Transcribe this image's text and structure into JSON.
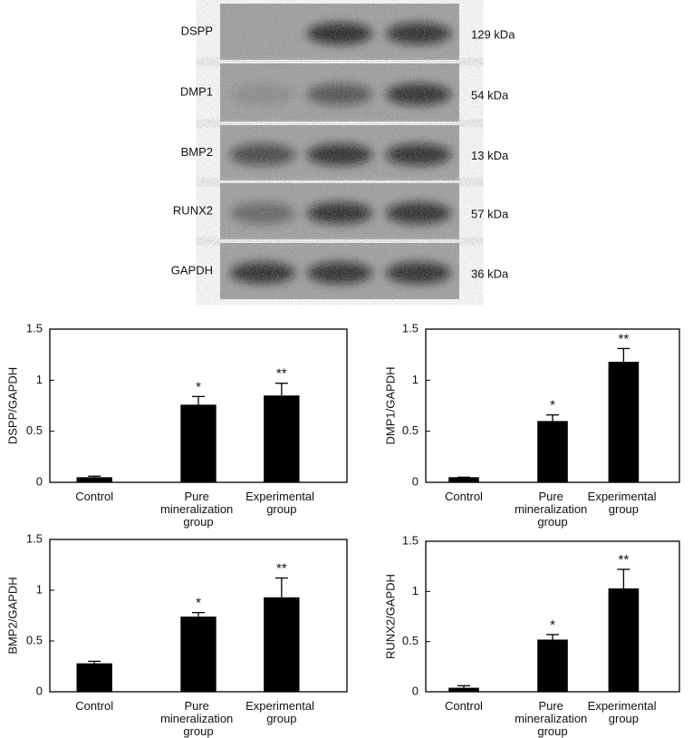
{
  "blot": {
    "rows": [
      {
        "label": "DSPP",
        "size": "129 kDa"
      },
      {
        "label": "DMP1",
        "size": "54 kDa"
      },
      {
        "label": "BMP2",
        "size": "13 kDa"
      },
      {
        "label": "RUNX2",
        "size": "57 kDa"
      },
      {
        "label": "GAPDH",
        "size": "36 kDa"
      }
    ]
  },
  "chart_data": [
    {
      "type": "bar",
      "ylabel": "DSPP/GAPDH",
      "categories": [
        "Control",
        "Pure mineralization group",
        "Experimental group"
      ],
      "values": [
        0.05,
        0.76,
        0.85
      ],
      "errors": [
        0.01,
        0.08,
        0.12
      ],
      "significance": [
        null,
        "*",
        "**"
      ],
      "color": "#000000",
      "ylim": [
        0,
        1.5
      ],
      "yticks": [
        0,
        0.5,
        1,
        1.5
      ]
    },
    {
      "type": "bar",
      "ylabel": "DMP1/GAPDH",
      "categories": [
        "Control",
        "Pure mineralization group",
        "Experimental group"
      ],
      "values": [
        0.05,
        0.6,
        1.18
      ],
      "errors": [
        0,
        0.06,
        0.13
      ],
      "significance": [
        null,
        "*",
        "**"
      ],
      "color": "#000000",
      "ylim": [
        0,
        1.5
      ],
      "yticks": [
        0,
        0.5,
        1,
        1.5
      ]
    },
    {
      "type": "bar",
      "ylabel": "BMP2/GAPDH",
      "categories": [
        "Control",
        "Pure mineralization group",
        "Experimental group"
      ],
      "values": [
        0.28,
        0.74,
        0.93
      ],
      "errors": [
        0.02,
        0.04,
        0.19
      ],
      "significance": [
        null,
        "*",
        "**"
      ],
      "color": "#000000",
      "ylim": [
        0,
        1.5
      ],
      "yticks": [
        0,
        0.5,
        1,
        1.5
      ]
    },
    {
      "type": "bar",
      "ylabel": "RUNX2/GAPDH",
      "categories": [
        "Control",
        "Pure mineralization group",
        "Experimental group"
      ],
      "values": [
        0.04,
        0.52,
        1.03
      ],
      "errors": [
        0.02,
        0.05,
        0.19
      ],
      "significance": [
        null,
        "*",
        "**"
      ],
      "color": "#000000",
      "ylim": [
        0,
        1.5
      ],
      "yticks": [
        0,
        0.5,
        1,
        1.5
      ]
    }
  ]
}
